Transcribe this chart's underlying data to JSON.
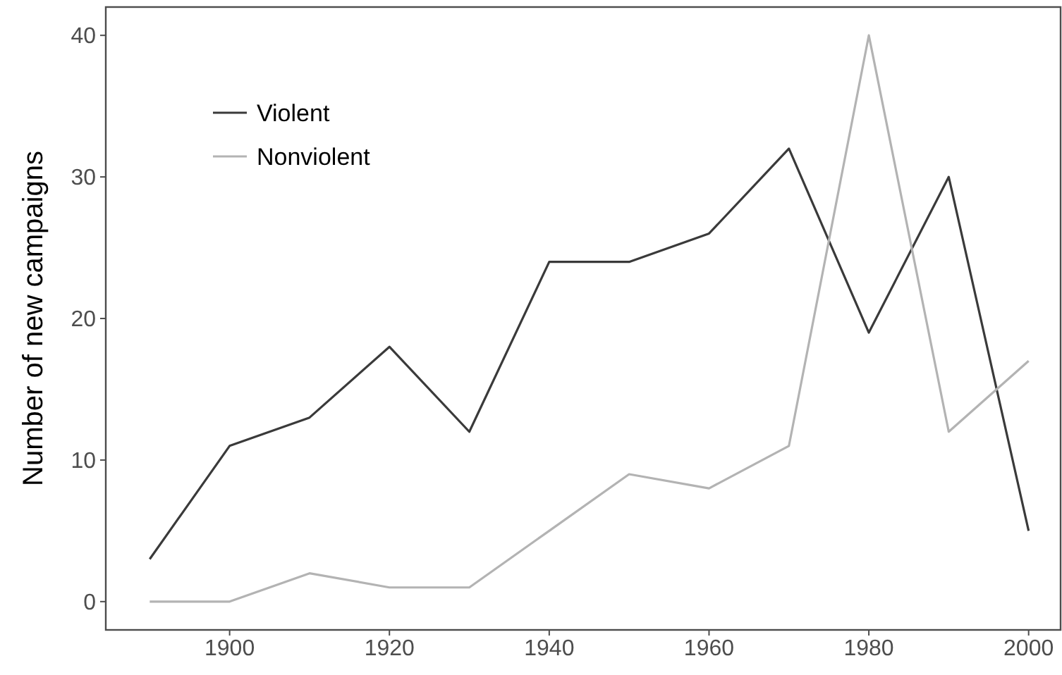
{
  "chart_data": {
    "type": "line",
    "ylabel": "Number of new campaigns",
    "x": [
      1890,
      1900,
      1910,
      1920,
      1930,
      1940,
      1950,
      1960,
      1970,
      1980,
      1990,
      2000
    ],
    "series": [
      {
        "name": "Violent",
        "color": "#3a3a3a",
        "values": [
          3,
          11,
          13,
          18,
          12,
          24,
          24,
          26,
          32,
          19,
          30,
          5
        ]
      },
      {
        "name": "Nonviolent",
        "color": "#b3b3b3",
        "values": [
          0,
          0,
          2,
          1,
          1,
          5,
          9,
          8,
          11,
          40,
          12,
          17
        ]
      }
    ],
    "xlim": [
      1884.5,
      2004
    ],
    "xticks": [
      1900,
      1920,
      1940,
      1960,
      1980,
      2000
    ],
    "ylim": [
      -2,
      42
    ],
    "yticks": [
      0,
      10,
      20,
      30,
      40
    ],
    "grid": false,
    "legend": "top left",
    "marker": "none",
    "line_style": "solid"
  }
}
